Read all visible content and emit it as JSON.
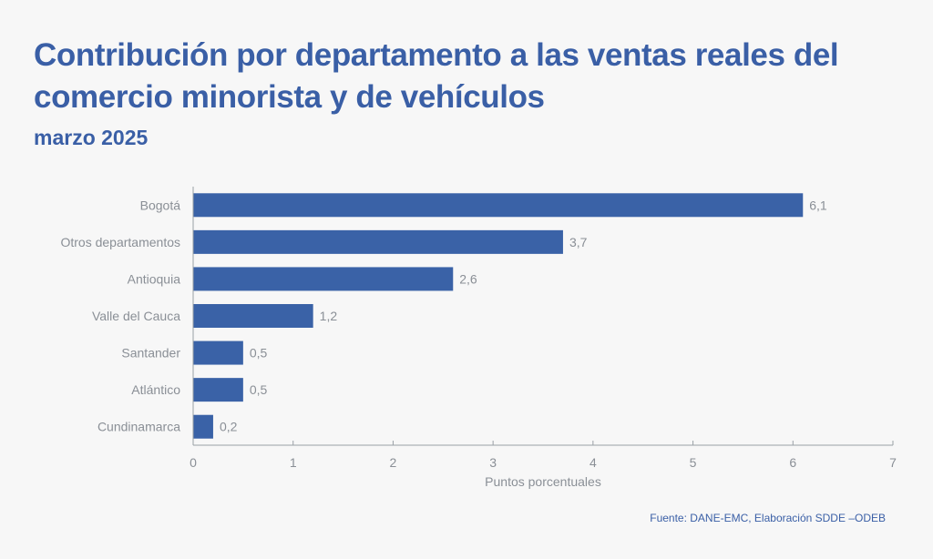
{
  "header": {
    "title": "Contribución por departamento a las ventas reales del comercio minorista y de vehículos",
    "subtitle": "marzo 2025"
  },
  "footer": {
    "source": "Fuente: DANE-EMC, Elaboración SDDE –ODEB"
  },
  "colors": {
    "bar": "#3a62a7",
    "title": "#3a5fa6",
    "axis": "#9aa0a6",
    "label": "#8a8f96"
  },
  "chart_data": {
    "type": "bar",
    "orientation": "horizontal",
    "title": "Contribución por departamento a las ventas reales del comercio minorista y de vehículos",
    "subtitle": "marzo 2025",
    "categories": [
      "Bogotá",
      "Otros departamentos",
      "Antioquia",
      "Valle del Cauca",
      "Santander",
      "Atlántico",
      "Cundinamarca"
    ],
    "values": [
      6.1,
      3.7,
      2.6,
      1.2,
      0.5,
      0.5,
      0.2
    ],
    "value_labels": [
      "6,1",
      "3,7",
      "2,6",
      "1,2",
      "0,5",
      "0,5",
      "0,2"
    ],
    "xlabel": "Puntos porcentuales",
    "ylabel": "",
    "xlim": [
      0,
      7
    ],
    "xticks": [
      0,
      1,
      2,
      3,
      4,
      5,
      6,
      7
    ],
    "xtick_labels": [
      "0",
      "1",
      "2",
      "3",
      "4",
      "5",
      "6",
      "7"
    ],
    "grid": false,
    "legend": "none",
    "source": "Fuente: DANE-EMC, Elaboración SDDE –ODEB"
  }
}
